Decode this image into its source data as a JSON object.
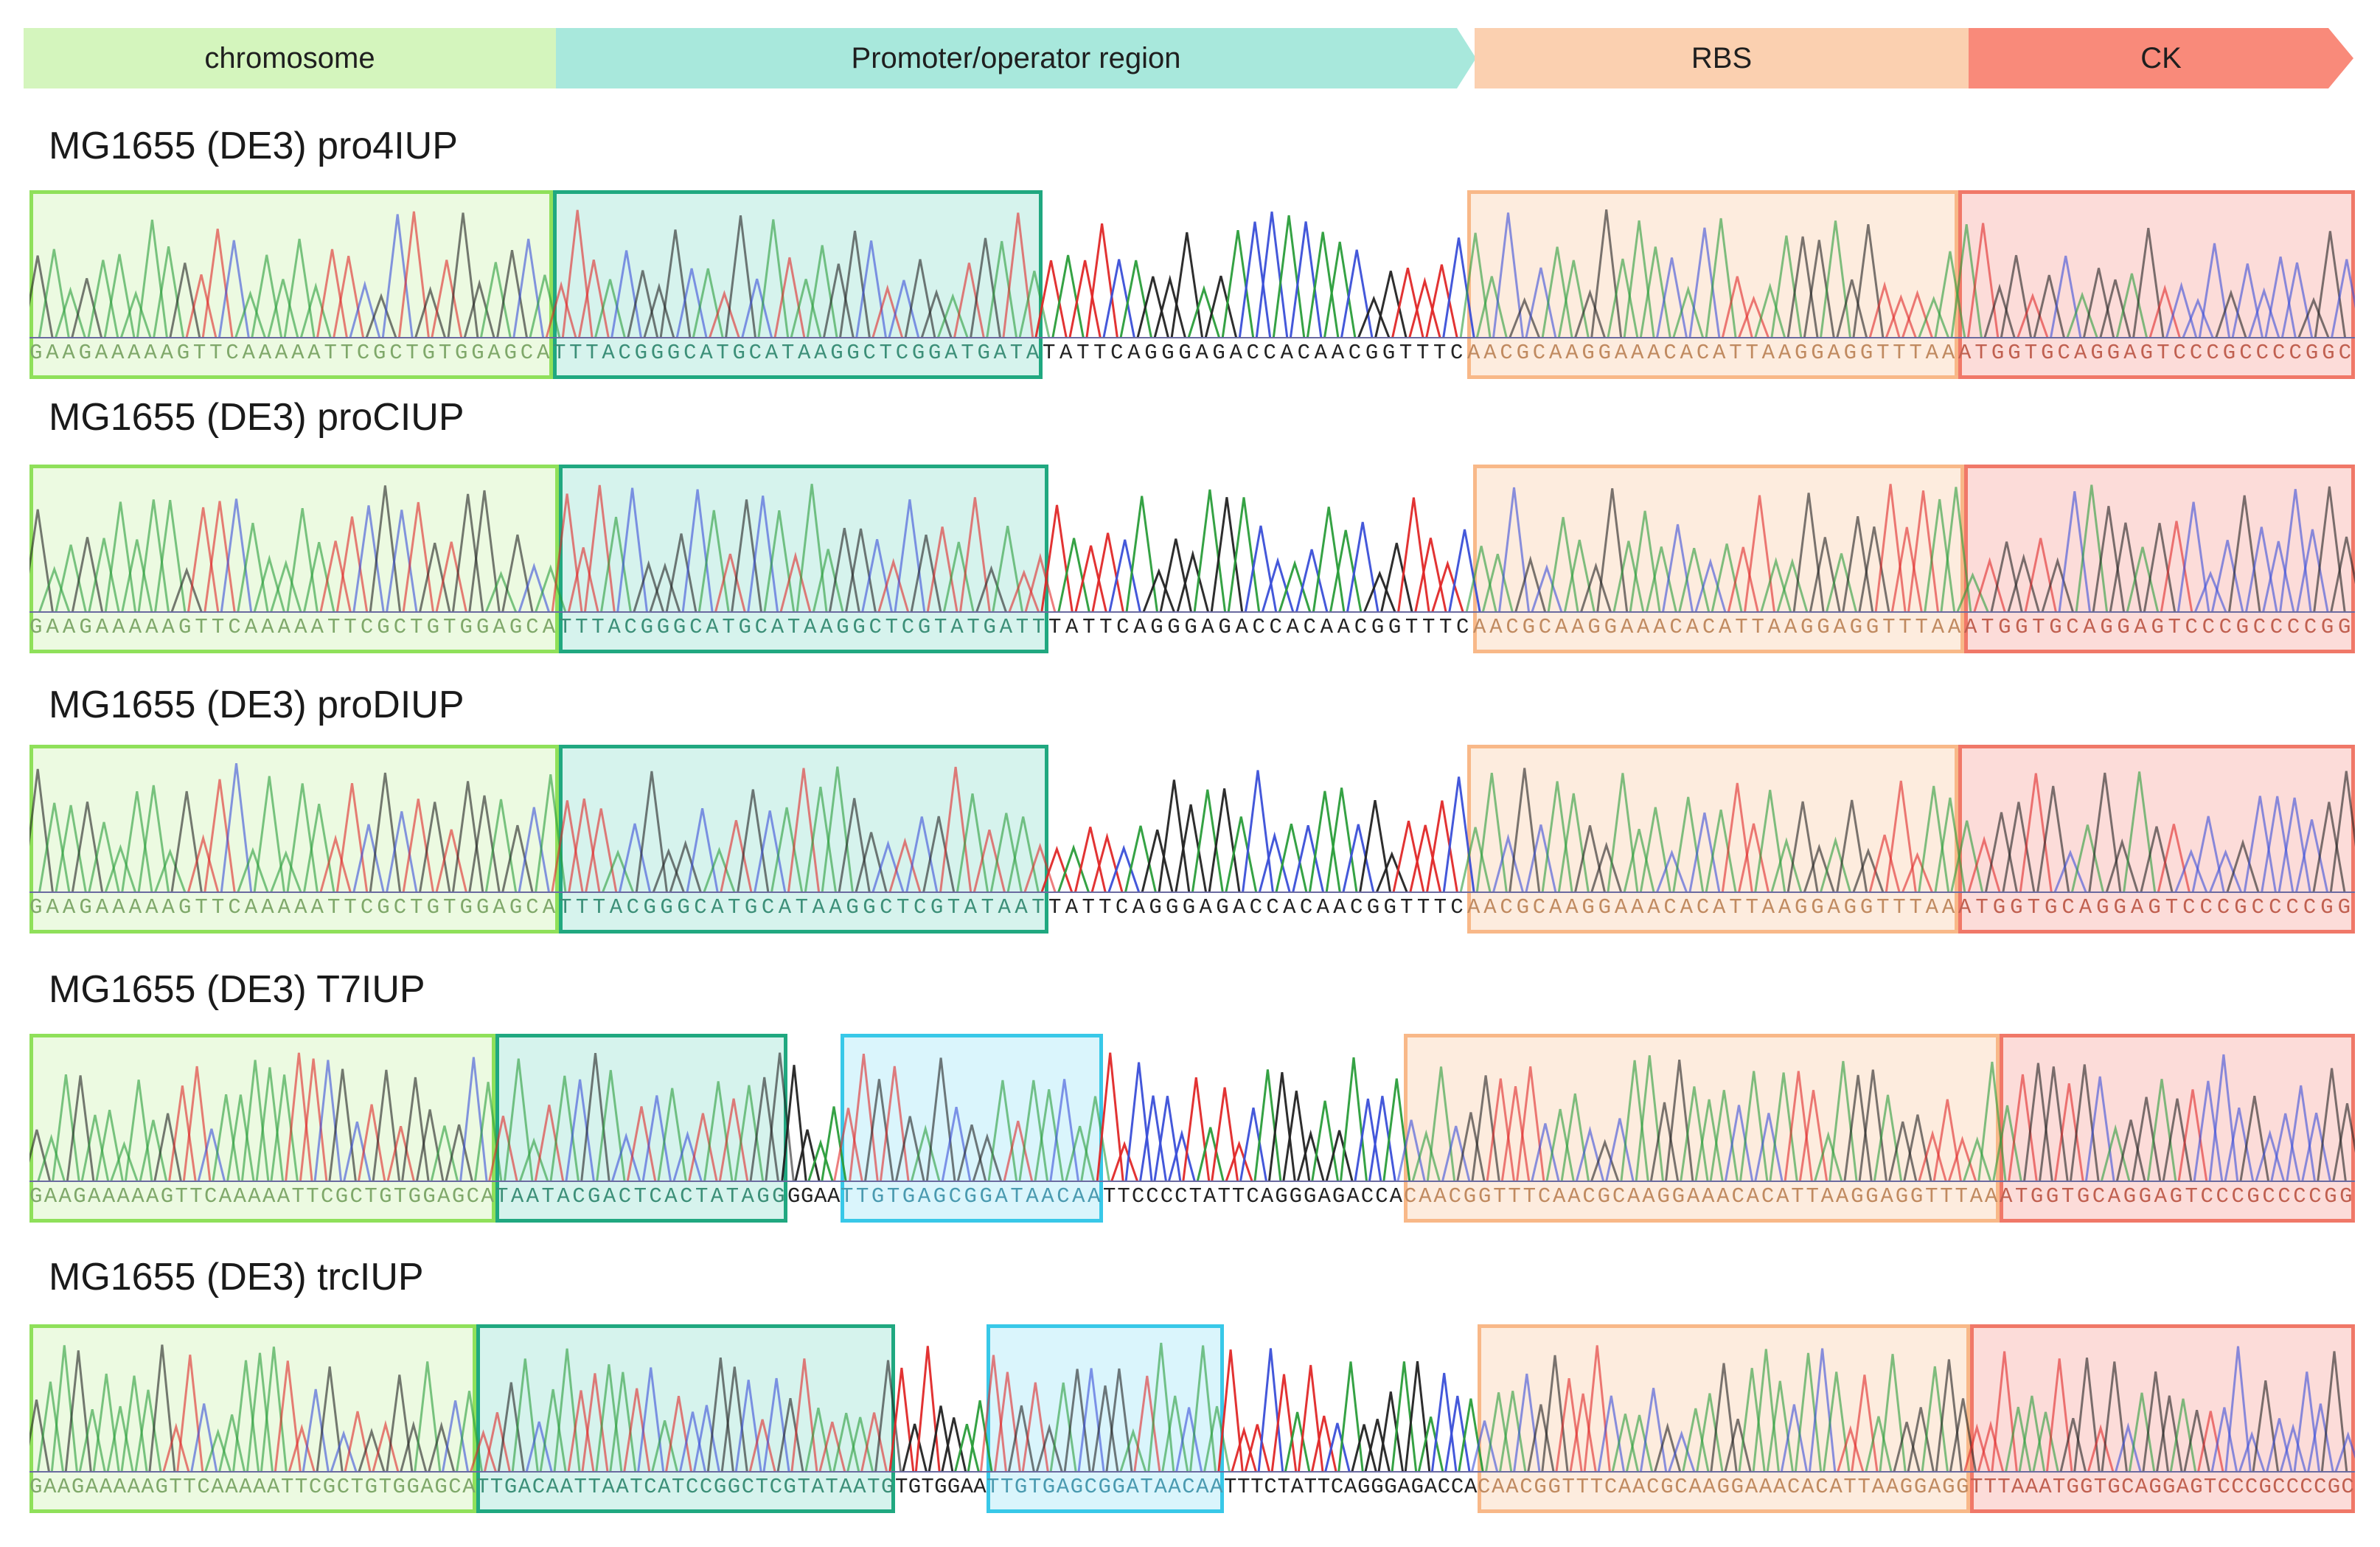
{
  "header": {
    "segments": [
      {
        "label": "chromosome",
        "fill": "#d4f5bd"
      },
      {
        "label": "Promoter/operator region",
        "fill": "#a8e8dc"
      },
      {
        "label": "RBS",
        "fill": "#fbd0b0"
      },
      {
        "label": "CK",
        "fill": "#f98a7a"
      }
    ]
  },
  "colors": {
    "chromosome_box": "#8fe05a",
    "promoter_box": "#20a880",
    "operator_box": "#38c8e8",
    "rbs_box": "#f8b888",
    "ck_box": "#f07868",
    "trace_A": "#2a9d3a",
    "trace_C": "#3a4fd8",
    "trace_G": "#222222",
    "trace_T": "#e02828"
  },
  "samples": [
    {
      "title": "MG1655 (DE3) pro4IUP",
      "seq": [
        {
          "text": "GAAGAAAAAGTTCAAAAATTCGCTGTGGAGCA",
          "region": "chromosome"
        },
        {
          "text": "TTTACGGGCATGCATAAGGCTCGGATGATA",
          "region": "promoter"
        },
        {
          "text": "TATTCAGGGAGACCACAACGGTTTC",
          "region": "plain"
        },
        {
          "text": "AACGCAAGGAAACACATTAAGGAGGTTTAA",
          "region": "rbs"
        },
        {
          "text": "ATGGTGCAGGAGTCCCGCCCCGGC",
          "region": "ck"
        }
      ]
    },
    {
      "title": "MG1655 (DE3) proCIUP",
      "seq": [
        {
          "text": "GAAGAAAAAGTTCAAAAATTCGCTGTGGAGCA",
          "region": "chromosome"
        },
        {
          "text": "TTTACGGGCATGCATAAGGCTCGTATGATT",
          "region": "promoter"
        },
        {
          "text": "TATTCAGGGAGACCACAACGGTTTC",
          "region": "plain"
        },
        {
          "text": "AACGCAAGGAAACACATTAAGGAGGTTTAA",
          "region": "rbs"
        },
        {
          "text": "ATGGTGCAGGAGTCCCGCCCCGG",
          "region": "ck"
        }
      ]
    },
    {
      "title": "MG1655 (DE3) proDIUP",
      "seq": [
        {
          "text": "GAAGAAAAAGTTCAAAAATTCGCTGTGGAGCA",
          "region": "chromosome"
        },
        {
          "text": "TTTACGGGCATGCATAAGGCTCGTATAAT",
          "region": "promoter"
        },
        {
          "text": "TATTCAGGGAGACCACAACGGTTTC",
          "region": "plain"
        },
        {
          "text": "AACGCAAGGAAACACATTAAGGAGGTTTAA",
          "region": "rbs"
        },
        {
          "text": "ATGGTGCAGGAGTCCCGCCCCGG",
          "region": "ck"
        }
      ]
    },
    {
      "title": "MG1655 (DE3) T7IUP",
      "seq": [
        {
          "text": "GAAGAAAAAGTTCAAAAATTCGCTGTGGAGCA",
          "region": "chromosome"
        },
        {
          "text": "TAATACGACTCACTATAGG",
          "region": "promoter"
        },
        {
          "text": "GGAA",
          "region": "plain"
        },
        {
          "text": "TTGTGAGCGGATAACAA",
          "region": "operator"
        },
        {
          "text": "TTCCCCTATTCAGGGAGACCA",
          "region": "plain"
        },
        {
          "text": "CAACGGTTTCAACGCAAGGAAACACATTAAGGAGGTTTAA",
          "region": "rbs"
        },
        {
          "text": "ATGGTGCAGGAGTCCCGCCCCGG",
          "region": "ck"
        }
      ]
    },
    {
      "title": "MG1655 (DE3) trcIUP",
      "seq": [
        {
          "text": "GAAGAAAAAGTTCAAAAATTCGCTGTGGAGCA",
          "region": "chromosome"
        },
        {
          "text": "TTGACAATTAATCATCCGGCTCGTATAATG",
          "region": "promoter"
        },
        {
          "text": "TGTGGAA",
          "region": "plain"
        },
        {
          "text": "TTGTGAGCGGATAACAA",
          "region": "operator"
        },
        {
          "text": "TTTCTATTCAGGGAGACCA",
          "region": "plain"
        },
        {
          "text": "CAACGGTTTCAACGCAAGGAAACACATTAAGGAGG",
          "region": "rbs"
        },
        {
          "text": "TTTAAATGGTGCAGGAGTCCCGCCCCGC",
          "region": "ck"
        }
      ]
    }
  ]
}
